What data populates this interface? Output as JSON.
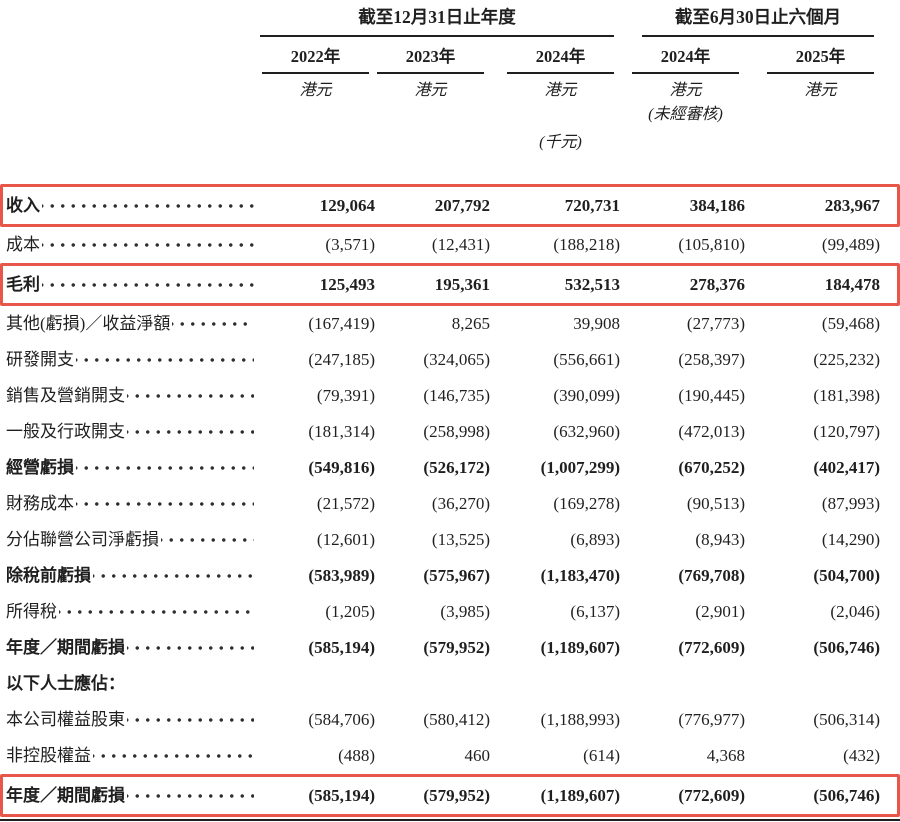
{
  "colors": {
    "annotation_red": "#e8564a",
    "text": "#1f1f1f"
  },
  "header": {
    "groups": [
      {
        "label": "截至12月31日止年度"
      },
      {
        "label": "截至6月30日止六個月"
      }
    ],
    "years": [
      "2022年",
      "2023年",
      "2024年",
      "2024年",
      "2025年"
    ],
    "currency": "港元",
    "unaudited_note": "(未經審核)",
    "unit_note": "(千元)"
  },
  "table": {
    "rows": [
      {
        "label": "收入",
        "bold": true,
        "boxed": true,
        "dots": true,
        "values": [
          "129,064",
          "207,792",
          "720,731",
          "384,186",
          "283,967"
        ]
      },
      {
        "label": "成本",
        "bold": false,
        "boxed": false,
        "dots": true,
        "values": [
          "(3,571)",
          "(12,431)",
          "(188,218)",
          "(105,810)",
          "(99,489)"
        ]
      },
      {
        "label": "毛利",
        "bold": true,
        "boxed": true,
        "dots": true,
        "values": [
          "125,493",
          "195,361",
          "532,513",
          "278,376",
          "184,478"
        ]
      },
      {
        "label": "其他(虧損)／收益淨額",
        "bold": false,
        "boxed": false,
        "dots": true,
        "values": [
          "(167,419)",
          "8,265",
          "39,908",
          "(27,773)",
          "(59,468)"
        ]
      },
      {
        "label": "研發開支",
        "bold": false,
        "boxed": false,
        "dots": true,
        "values": [
          "(247,185)",
          "(324,065)",
          "(556,661)",
          "(258,397)",
          "(225,232)"
        ]
      },
      {
        "label": "銷售及營銷開支",
        "bold": false,
        "boxed": false,
        "dots": true,
        "values": [
          "(79,391)",
          "(146,735)",
          "(390,099)",
          "(190,445)",
          "(181,398)"
        ]
      },
      {
        "label": "一般及行政開支",
        "bold": false,
        "boxed": false,
        "dots": true,
        "values": [
          "(181,314)",
          "(258,998)",
          "(632,960)",
          "(472,013)",
          "(120,797)"
        ]
      },
      {
        "label": "經營虧損",
        "bold": true,
        "boxed": false,
        "dots": true,
        "values": [
          "(549,816)",
          "(526,172)",
          "(1,007,299)",
          "(670,252)",
          "(402,417)"
        ]
      },
      {
        "label": "財務成本",
        "bold": false,
        "boxed": false,
        "dots": true,
        "values": [
          "(21,572)",
          "(36,270)",
          "(169,278)",
          "(90,513)",
          "(87,993)"
        ]
      },
      {
        "label": "分佔聯營公司淨虧損",
        "bold": false,
        "boxed": false,
        "dots": true,
        "values": [
          "(12,601)",
          "(13,525)",
          "(6,893)",
          "(8,943)",
          "(14,290)"
        ]
      },
      {
        "label": "除稅前虧損",
        "bold": true,
        "boxed": false,
        "dots": true,
        "values": [
          "(583,989)",
          "(575,967)",
          "(1,183,470)",
          "(769,708)",
          "(504,700)"
        ]
      },
      {
        "label": "所得稅",
        "bold": false,
        "boxed": false,
        "dots": true,
        "values": [
          "(1,205)",
          "(3,985)",
          "(6,137)",
          "(2,901)",
          "(2,046)"
        ]
      },
      {
        "label": "年度／期間虧損",
        "bold": true,
        "boxed": false,
        "dots": true,
        "values": [
          "(585,194)",
          "(579,952)",
          "(1,189,607)",
          "(772,609)",
          "(506,746)"
        ]
      },
      {
        "label": "以下人士應佔：",
        "bold": true,
        "boxed": false,
        "dots": false,
        "values": [
          "",
          "",
          "",
          "",
          ""
        ]
      },
      {
        "label": "本公司權益股東",
        "bold": false,
        "boxed": false,
        "dots": true,
        "values": [
          "(584,706)",
          "(580,412)",
          "(1,188,993)",
          "(776,977)",
          "(506,314)"
        ]
      },
      {
        "label": "非控股權益",
        "bold": false,
        "boxed": false,
        "dots": true,
        "values": [
          "(488)",
          "460",
          "(614)",
          "4,368",
          "(432)"
        ]
      },
      {
        "label": "年度／期間虧損",
        "bold": true,
        "boxed": true,
        "dots": true,
        "values": [
          "(585,194)",
          "(579,952)",
          "(1,189,607)",
          "(772,609)",
          "(506,746)"
        ]
      }
    ]
  }
}
